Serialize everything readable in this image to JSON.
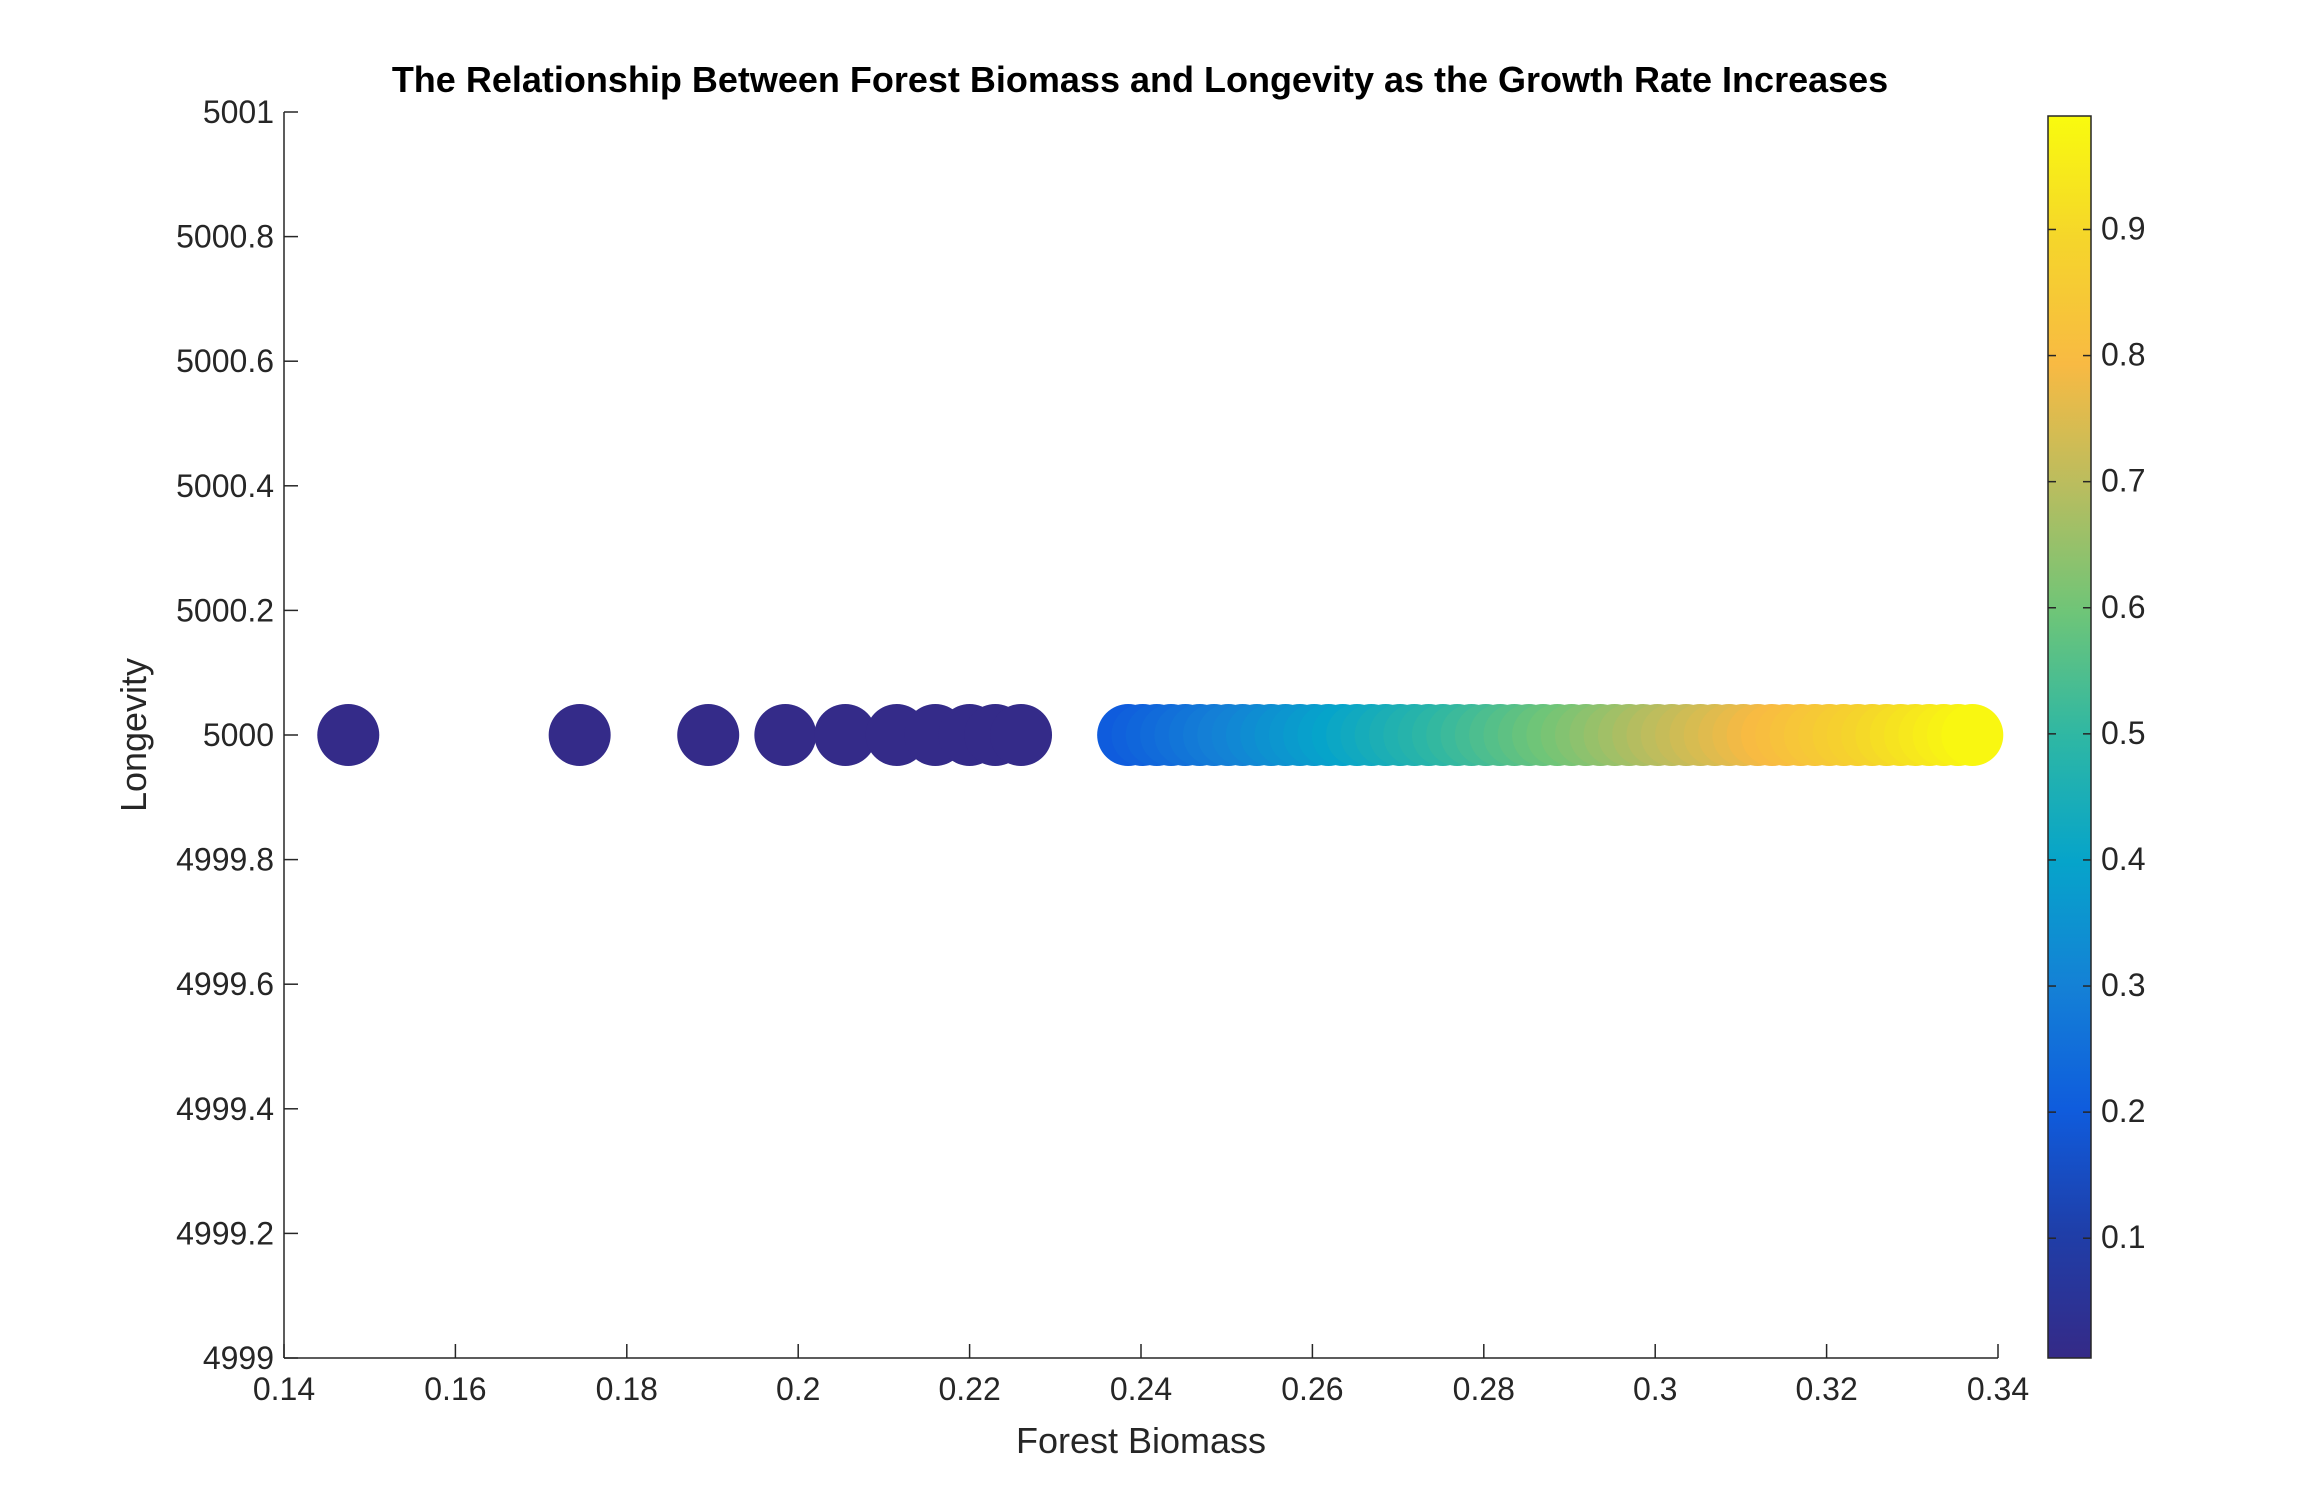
{
  "chart_data": {
    "type": "scatter",
    "title": "The Relationship Between Forest Biomass and Longevity as the Growth Rate Increases",
    "xlabel": "Forest Biomass",
    "ylabel": "Longevity",
    "xlim": [
      0.14,
      0.34
    ],
    "ylim": [
      4999,
      5001
    ],
    "xticks": [
      "0.14",
      "0.16",
      "0.18",
      "0.2",
      "0.22",
      "0.24",
      "0.26",
      "0.28",
      "0.3",
      "0.32",
      "0.34"
    ],
    "yticks": [
      "4999",
      "4999.2",
      "4999.4",
      "4999.6",
      "4999.8",
      "5000",
      "5000.2",
      "5000.4",
      "5000.6",
      "5000.8",
      "5001"
    ],
    "grid": false,
    "colorbar": {
      "range": [
        0.005,
        0.99
      ],
      "ticks": [
        "0.1",
        "0.2",
        "0.3",
        "0.4",
        "0.5",
        "0.6",
        "0.7",
        "0.8",
        "0.9"
      ],
      "colormap": "parula",
      "placement": "right"
    },
    "points_dark_cluster": {
      "x": [
        0.1475,
        0.1745,
        0.1895,
        0.1985,
        0.2055,
        0.2115,
        0.216,
        0.22,
        0.223,
        0.226
      ],
      "y": 5000,
      "color_value": 0.005
    },
    "points_gradient_run": {
      "x_start": 0.2385,
      "x_end": 0.337,
      "y": 5000,
      "color_value_start": 0.2,
      "color_value_end": 0.99
    }
  }
}
